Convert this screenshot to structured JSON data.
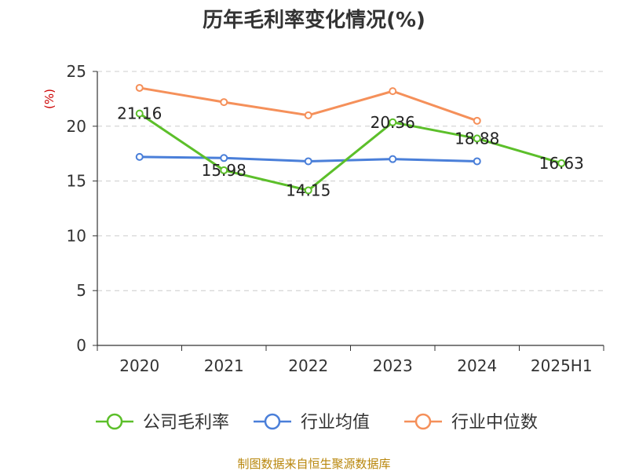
{
  "chart_data": {
    "type": "line",
    "title": "历年毛利率变化情况(%)",
    "ylabel": "(%)",
    "xlabel": "",
    "categories": [
      "2020",
      "2021",
      "2022",
      "2023",
      "2024",
      "2025H1"
    ],
    "ylim": [
      0,
      25
    ],
    "yticks": [
      0,
      5,
      10,
      15,
      20,
      25
    ],
    "grid": true,
    "legend_position": "bottom",
    "series": [
      {
        "name": "公司毛利率",
        "color": "#5cbf2a",
        "values": [
          21.16,
          15.98,
          14.15,
          20.36,
          18.88,
          16.63
        ],
        "labels": [
          "21.16",
          "15.98",
          "14.15",
          "20.36",
          "18.88",
          "16.63"
        ]
      },
      {
        "name": "行业均值",
        "color": "#4a7fd9",
        "values": [
          17.2,
          17.1,
          16.8,
          17.0,
          16.8,
          null
        ]
      },
      {
        "name": "行业中位数",
        "color": "#f5905a",
        "values": [
          23.5,
          22.2,
          21.0,
          23.2,
          20.5,
          null
        ]
      }
    ],
    "source": "制图数据来自恒生聚源数据库"
  }
}
